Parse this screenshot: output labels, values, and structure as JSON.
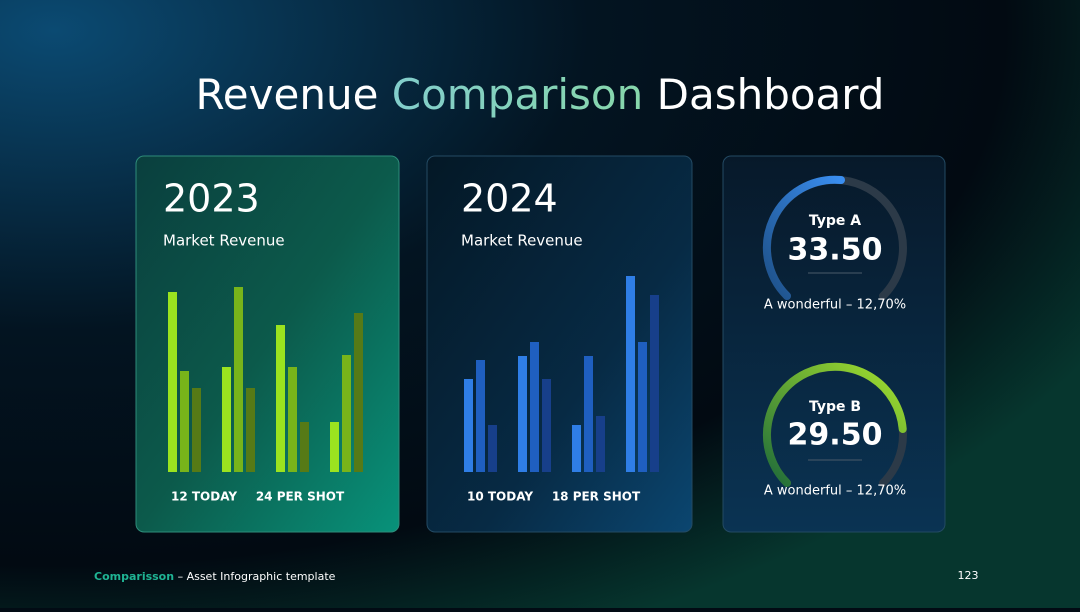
{
  "header": {
    "title_parts": [
      "Revenue",
      "Comparison",
      "Dashboard"
    ]
  },
  "chart_data": [
    {
      "type": "bar",
      "title": "2023",
      "subtitle": "Market Revenue",
      "ylim": [
        0,
        200
      ],
      "series": [
        {
          "color": "#9be31f",
          "values": [
            180,
            105,
            147,
            50
          ]
        },
        {
          "color": "#78b41a",
          "values": [
            101,
            185,
            105,
            117
          ]
        },
        {
          "color": "#567a16",
          "values": [
            84,
            84,
            50,
            159
          ]
        }
      ],
      "annotations": [
        "12 TODAY",
        "24 PER SHOT"
      ]
    },
    {
      "type": "bar",
      "title": "2024",
      "subtitle": "Market Revenue",
      "ylim": [
        0,
        200
      ],
      "series": [
        {
          "color": "#2f7ee6",
          "values": [
            93,
            116,
            47,
            196
          ]
        },
        {
          "color": "#1f5fc0",
          "values": [
            112,
            130,
            116,
            130
          ]
        },
        {
          "color": "#173f8a",
          "values": [
            47,
            93,
            56,
            177
          ]
        }
      ],
      "annotations": [
        "10 TODAY",
        "18 PER SHOT"
      ]
    }
  ],
  "gauges": [
    {
      "label": "Type A",
      "value": "33.50",
      "caption": "A wonderful – 12,70%"
    },
    {
      "label": "Type B",
      "value": "29.50",
      "caption": "A wonderful – 12,70%"
    }
  ],
  "footer": {
    "brand": "Comparisson",
    "text": "– Asset Infographic  template",
    "page": "123"
  }
}
